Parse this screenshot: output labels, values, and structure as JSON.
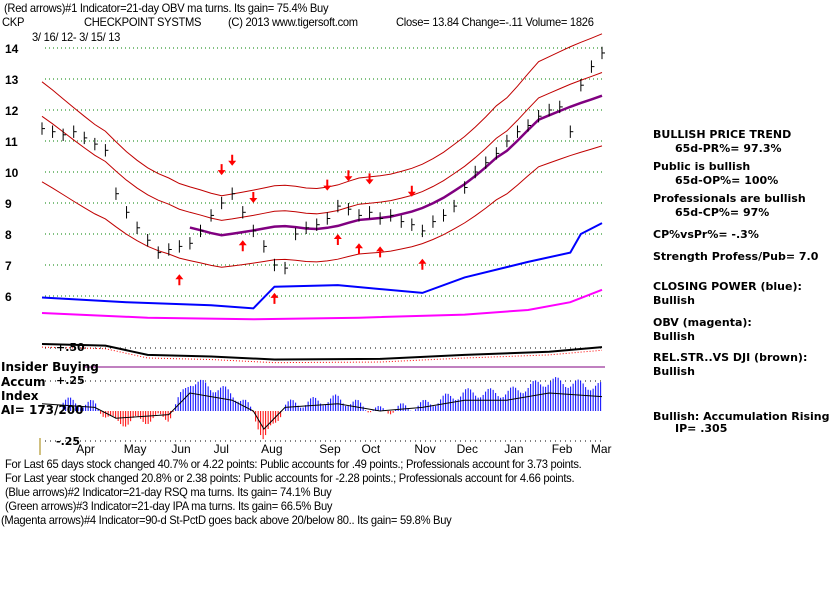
{
  "header": {
    "line1": "(Red arrows)#1 Indicator=21-day OBV ma turns. Its gain= 75.4% Buy",
    "ticker": "CKP",
    "company": "CHECKPOINT SYSTMS",
    "copyright": "(C) 2013 www.tigersoft.com",
    "quote": "Close=  13.84  Change=-.11 Volume= 1826",
    "date_range": "3/ 16/ 12- 3/ 15/ 13"
  },
  "side_panel": {
    "trend_title": "BULLISH PRICE TREND",
    "pr": "65d-PR%= 97.3%",
    "public": "Public is bullish",
    "op": "65d-OP%= 100%",
    "professionals": "Professionals are bullish",
    "cp": "65d-CP%= 97%",
    "cpvspr": "CP%vsPr%= -.3%",
    "strength": "Strength Profess/Pub= 7.0",
    "closing_power_label": "CLOSING POWER (blue):",
    "closing_power_status": "Bullish",
    "obv_label": "OBV (magenta):",
    "obv_status": "Bullish",
    "relstr_label": "REL.STR..VS DJI (brown):",
    "relstr_status": "Bullish",
    "accum_label": "Bullish: Accumulation Rising",
    "ip": "IP=  .305"
  },
  "accum_panel": {
    "insider": "Insider Buying",
    "accum": "Accum",
    "index": "Index",
    "ai": "AI= 173/200",
    "plus50": "+.50",
    "plus25": "+.25",
    "minus25": "-.25"
  },
  "footer": [
    "For Last 65 days stock changed  40.7% or  4.22 points:  Public accounts for  .49 points.;  Professionals account for  3.73 points.",
    "For Last year stock changed  20.8% or  2.38 points:  Public accounts for -2.28 points.;  Professionals account for  4.66 points.",
    "(Blue arrows)#2 Indicator=21-day RSQ ma turns. Its gain= 74.1% Buy",
    "(Green arrows)#3 Indicator=21-day IPA ma turns. Its gain= 66.5% Buy",
    "(Magenta arrows)#4 Indicator=90-d St-PctD goes back above 20/below 80.. Its gain= 59.8% Buy"
  ],
  "chart_data": {
    "type": "line",
    "title": "CHECKPOINT SYSTMS (CKP) weekly price with indicators",
    "ylim": [
      6,
      14
    ],
    "y_ticks": [
      "14",
      "13",
      "12",
      "11",
      "10",
      "9",
      "8",
      "7",
      "6"
    ],
    "months": [
      {
        "label": "Apr",
        "week": 4
      },
      {
        "label": "May",
        "week": 8.5
      },
      {
        "label": "Jun",
        "week": 13
      },
      {
        "label": "Jul",
        "week": 17
      },
      {
        "label": "Aug",
        "week": 21.5
      },
      {
        "label": "Sep",
        "week": 27
      },
      {
        "label": "Oct",
        "week": 31
      },
      {
        "label": "Nov",
        "week": 36
      },
      {
        "label": "Dec",
        "week": 40
      },
      {
        "label": "Jan",
        "week": 44.5
      },
      {
        "label": "Feb",
        "week": 49
      },
      {
        "label": "Mar",
        "week": 52.7
      }
    ],
    "price": [
      11.4,
      11.3,
      11.2,
      11.3,
      11.1,
      10.9,
      10.7,
      9.3,
      8.7,
      8.2,
      7.8,
      7.4,
      7.5,
      7.6,
      7.7,
      8.1,
      8.6,
      9.0,
      9.3,
      8.7,
      8.1,
      7.6,
      7.0,
      6.9,
      8.0,
      8.2,
      8.3,
      8.5,
      8.9,
      8.8,
      8.6,
      8.7,
      8.5,
      8.6,
      8.4,
      8.3,
      8.1,
      8.4,
      8.6,
      8.9,
      9.5,
      10.0,
      10.3,
      10.6,
      11.0,
      11.3,
      11.5,
      11.8,
      12.0,
      12.1,
      11.3,
      12.8,
      13.4,
      13.84
    ],
    "closing_power": [
      [
        0,
        5.95
      ],
      [
        8,
        5.8
      ],
      [
        16,
        5.7
      ],
      [
        20,
        5.6
      ],
      [
        22,
        6.3
      ],
      [
        28,
        6.35
      ],
      [
        36,
        6.1
      ],
      [
        40,
        6.6
      ],
      [
        46,
        7.1
      ],
      [
        50,
        7.4
      ],
      [
        51,
        8.0
      ],
      [
        53,
        8.35
      ]
    ],
    "obv": [
      [
        0,
        5.45
      ],
      [
        10,
        5.3
      ],
      [
        20,
        5.25
      ],
      [
        30,
        5.3
      ],
      [
        40,
        5.4
      ],
      [
        46,
        5.55
      ],
      [
        50,
        5.8
      ],
      [
        53,
        6.2
      ]
    ],
    "rel_strength": [
      [
        0,
        4.45
      ],
      [
        6,
        4.4
      ],
      [
        10,
        4.1
      ],
      [
        16,
        4.05
      ],
      [
        22,
        3.95
      ],
      [
        32,
        3.97
      ],
      [
        40,
        4.1
      ],
      [
        48,
        4.2
      ],
      [
        53,
        4.35
      ]
    ],
    "accum_index": [
      [
        0,
        0.1
      ],
      [
        5,
        0.05
      ],
      [
        7,
        -0.1
      ],
      [
        12,
        -0.05
      ],
      [
        14,
        0.25
      ],
      [
        18,
        0.15
      ],
      [
        20,
        0.0
      ],
      [
        21,
        -0.25
      ],
      [
        23,
        0.05
      ],
      [
        28,
        0.1
      ],
      [
        32,
        0.0
      ],
      [
        36,
        0.05
      ],
      [
        40,
        0.15
      ],
      [
        44,
        0.15
      ],
      [
        48,
        0.25
      ],
      [
        53,
        0.2
      ]
    ],
    "signals": [
      {
        "week": 13,
        "dir": "up"
      },
      {
        "week": 17,
        "dir": "down"
      },
      {
        "week": 18,
        "dir": "down"
      },
      {
        "week": 19,
        "dir": "up"
      },
      {
        "week": 20,
        "dir": "down"
      },
      {
        "week": 22,
        "dir": "up"
      },
      {
        "week": 27,
        "dir": "down"
      },
      {
        "week": 28,
        "dir": "up"
      },
      {
        "week": 29,
        "dir": "down"
      },
      {
        "week": 30,
        "dir": "up"
      },
      {
        "week": 31,
        "dir": "down"
      },
      {
        "week": 32,
        "dir": "up"
      },
      {
        "week": 35,
        "dir": "down"
      },
      {
        "week": 36,
        "dir": "up"
      }
    ],
    "colors": {
      "price": "#000000",
      "bands": "#c00000",
      "ma": "#800080",
      "closing_power": "#0000ff",
      "obv": "#ff00ff",
      "rel_strength": "#000000",
      "accum_pos": "#0000ff",
      "accum_neg": "#ff0000",
      "grid": "#008000"
    }
  }
}
